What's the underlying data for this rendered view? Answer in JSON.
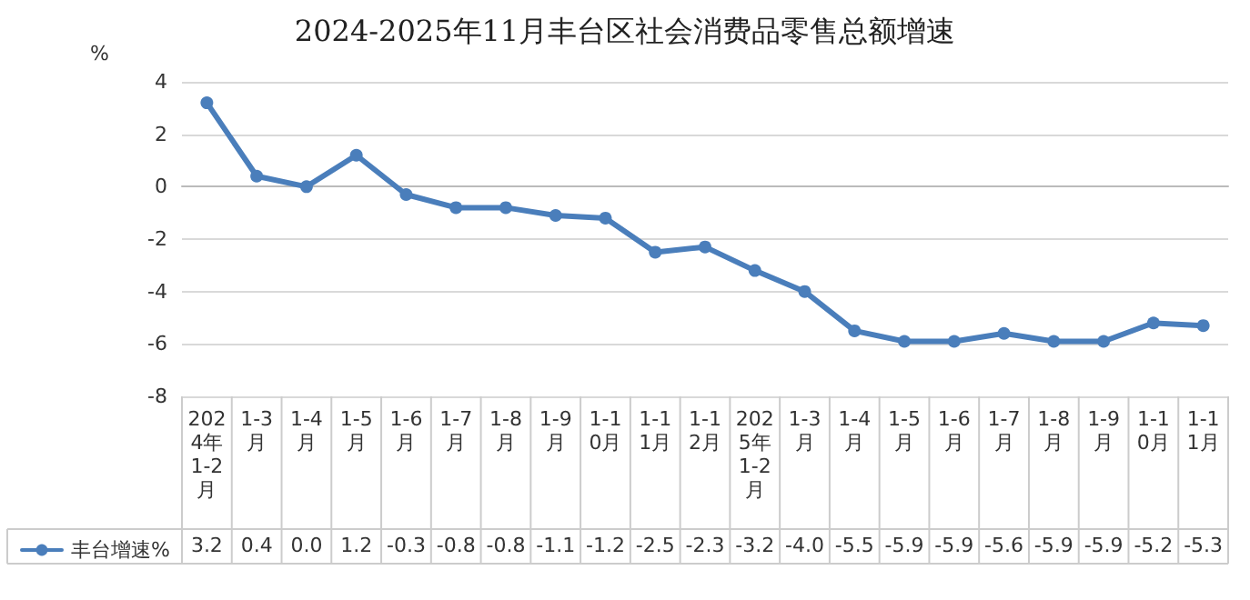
{
  "chart_data": {
    "type": "line",
    "title": "2024-2025年11月丰台区社会消费品零售总额增速",
    "ylabel": "%",
    "categories": [
      "2024年1-2月",
      "1-3月",
      "1-4月",
      "1-5月",
      "1-6月",
      "1-7月",
      "1-8月",
      "1-9月",
      "1-10月",
      "1-11月",
      "1-12月",
      "2025年1-2月",
      "1-3月",
      "1-4月",
      "1-5月",
      "1-6月",
      "1-7月",
      "1-8月",
      "1-9月",
      "1-10月",
      "1-11月"
    ],
    "series": [
      {
        "name": "丰台增速%",
        "color": "#4a7ebb",
        "values": [
          3.2,
          0.4,
          0.0,
          1.2,
          -0.3,
          -0.8,
          -0.8,
          -1.1,
          -1.2,
          -2.5,
          -2.3,
          -3.2,
          -4.0,
          -5.5,
          -5.9,
          -5.9,
          -5.6,
          -5.9,
          -5.9,
          -5.2,
          -5.3
        ],
        "value_labels": [
          "3.2",
          "0.4",
          "0.0",
          "1.2",
          "-0.3",
          "-0.8",
          "-0.8",
          "-1.1",
          "-1.2",
          "-2.5",
          "-2.3",
          "-3.2",
          "-4.0",
          "-5.5",
          "-5.9",
          "-5.9",
          "-5.6",
          "-5.9",
          "-5.9",
          "-5.2",
          "-5.3"
        ]
      }
    ],
    "ylim": [
      -8,
      4
    ],
    "yticks": [
      -8,
      -6,
      -4,
      -2,
      0,
      2,
      4
    ],
    "grid": "y",
    "marker": "circle",
    "line_style": "solid",
    "legend": "bottom left"
  }
}
